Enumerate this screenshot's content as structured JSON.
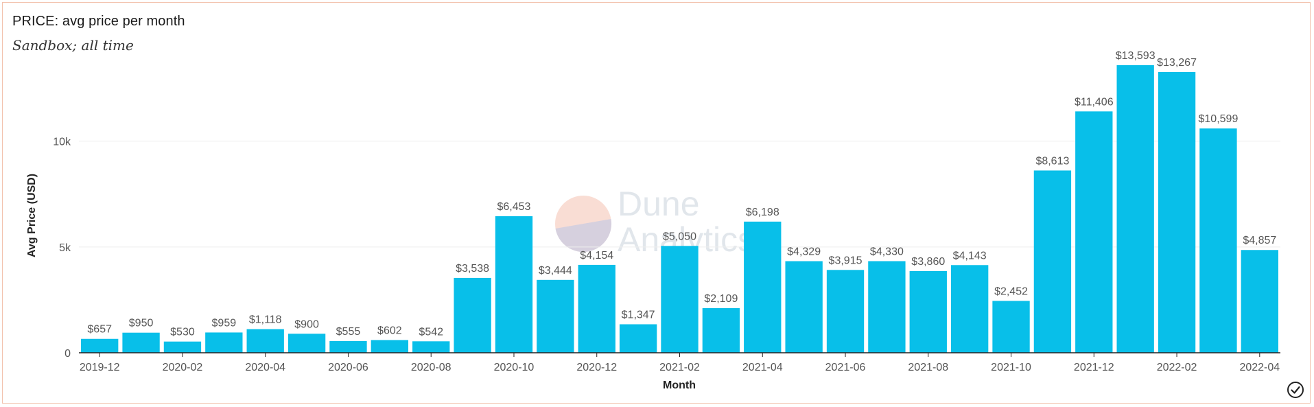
{
  "header": {
    "title": "PRICE: avg price per month",
    "subtitle": "Sandbox; all time"
  },
  "watermark": {
    "line1": "Dune",
    "line2": "Analytics"
  },
  "colors": {
    "bar": "#08bfe9",
    "card_border": "#f2c2ad",
    "grid": "#eeeeee",
    "axis": "#222222"
  },
  "chart_data": {
    "type": "bar",
    "title": "PRICE: avg price per month",
    "subtitle": "Sandbox; all time",
    "xlabel": "Month",
    "ylabel": "Avg Price (USD)",
    "ylim": [
      0,
      14400
    ],
    "yticks": [
      {
        "value": 0,
        "label": "0"
      },
      {
        "value": 5000,
        "label": "5k"
      },
      {
        "value": 10000,
        "label": "10k"
      }
    ],
    "grid": true,
    "legend": "none",
    "categories": [
      "2019-12",
      "2020-01",
      "2020-02",
      "2020-03",
      "2020-04",
      "2020-05",
      "2020-06",
      "2020-07",
      "2020-08",
      "2020-09",
      "2020-10",
      "2020-11",
      "2020-12",
      "2021-01",
      "2021-02",
      "2021-03",
      "2021-04",
      "2021-05",
      "2021-06",
      "2021-07",
      "2021-08",
      "2021-09",
      "2021-10",
      "2021-11",
      "2021-12",
      "2022-01",
      "2022-02",
      "2022-03",
      "2022-04"
    ],
    "xtick_labels": [
      "2019-12",
      "2020-02",
      "2020-04",
      "2020-06",
      "2020-08",
      "2020-10",
      "2020-12",
      "2021-02",
      "2021-04",
      "2021-06",
      "2021-08",
      "2021-10",
      "2021-12",
      "2022-02",
      "2022-04"
    ],
    "values": [
      657,
      950,
      530,
      959,
      1118,
      900,
      555,
      602,
      542,
      3538,
      6453,
      3444,
      4154,
      1347,
      5050,
      2109,
      6198,
      4329,
      3915,
      4330,
      3860,
      4143,
      2452,
      8613,
      11406,
      13593,
      13267,
      10599,
      4857
    ],
    "data_labels": [
      "$657",
      "$950",
      "$530",
      "$959",
      "$1,118",
      "$900",
      "$555",
      "$602",
      "$542",
      "$3,538",
      "$6,453",
      "$3,444",
      "$4,154",
      "$1,347",
      "$5,050",
      "$2,109",
      "$6,198",
      "$4,329",
      "$3,915",
      "$4,330",
      "$3,860",
      "$4,143",
      "$2,452",
      "$8,613",
      "$11,406",
      "$13,593",
      "$13,267",
      "$10,599",
      "$4,857"
    ]
  }
}
